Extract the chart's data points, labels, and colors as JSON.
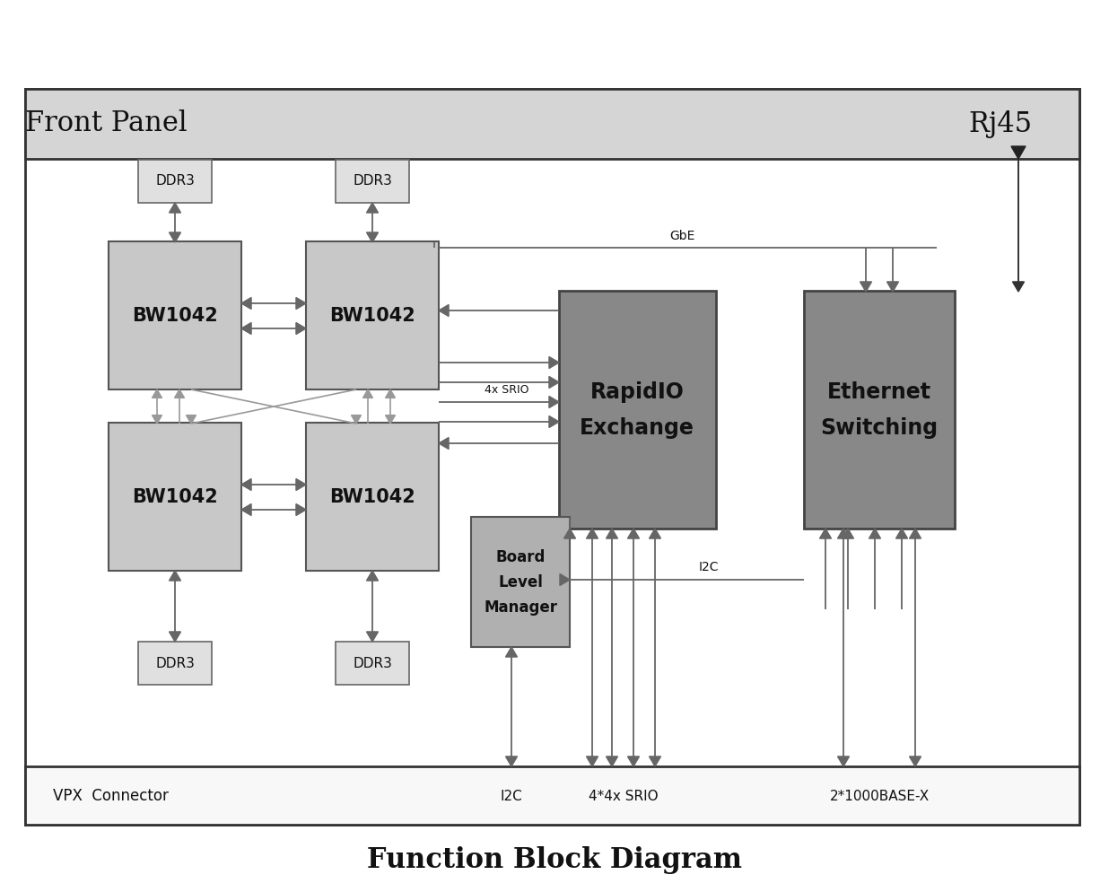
{
  "title": "Function Block Diagram",
  "front_panel_label": "Front Panel",
  "rj45_label": "Rj45",
  "vpx_label": "VPX  Connector",
  "gbe_label": "GbE",
  "srio_label": "4x SRIO",
  "i2c_label": "I2C",
  "i2c_vpx_label": "I2C",
  "srio_vpx_label": "4*4x SRIO",
  "base_x_label": "2*1000BASE-X",
  "light_gray": "#c8c8c8",
  "dark_gray": "#888888",
  "mid_gray": "#b0b0b0",
  "ddr_bg": "#e0e0e0",
  "arrow_color": "#666666",
  "panel_bg": "#d5d5d5",
  "outer_bg": "#ffffff",
  "fig_w": 12.36,
  "fig_h": 9.94,
  "dpi": 100
}
